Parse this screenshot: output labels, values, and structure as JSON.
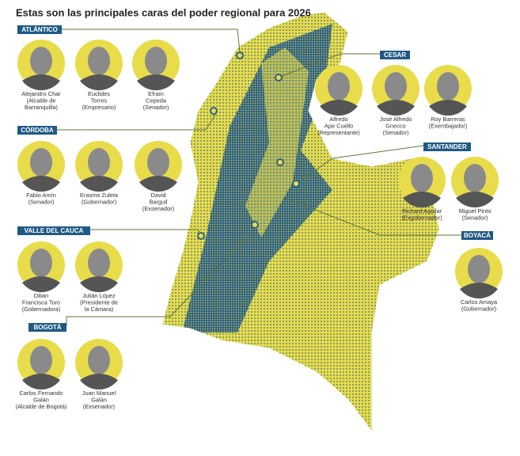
{
  "title": "Estas son las principales caras del poder regional para 2026",
  "regions": [
    {
      "name": "ATLÁNTICO",
      "people": [
        {
          "lines": [
            "Alejandro Char",
            "(Alcalde de",
            "Barranquilla)"
          ]
        },
        {
          "lines": [
            "Euclides",
            "Torres",
            "(Empresario)"
          ]
        },
        {
          "lines": [
            "Efraín",
            "Cepeda",
            "(Senador)"
          ]
        }
      ]
    },
    {
      "name": "CESAR",
      "people": [
        {
          "lines": [
            "Alfredo",
            "Ape Cuello",
            "(Representante)"
          ]
        },
        {
          "lines": [
            "José Alfredo",
            "Gnecco",
            "(Senador)"
          ]
        },
        {
          "lines": [
            "Roy Barreras",
            "(Exembajador)"
          ]
        }
      ]
    },
    {
      "name": "CÓRDOBA",
      "people": [
        {
          "lines": [
            "Fabio Amín",
            "(Senador)"
          ]
        },
        {
          "lines": [
            "Erasmo Zuleta",
            "(Gobernador)"
          ]
        },
        {
          "lines": [
            "David",
            "Barguil",
            "(Exsenador)"
          ]
        }
      ]
    },
    {
      "name": "SANTANDER",
      "people": [
        {
          "lines": [
            "Richard Aguilar",
            "(Exgobernador)"
          ]
        },
        {
          "lines": [
            "Miguel Pinto",
            "(Senador)"
          ]
        }
      ]
    },
    {
      "name": "VALLE DEL CAUCA",
      "people": [
        {
          "lines": [
            "Dilian",
            "Francisca Toro",
            "(Gobernadora)"
          ]
        },
        {
          "lines": [
            "Julián López",
            "(Presidente de",
            "la Cámara)"
          ]
        }
      ]
    },
    {
      "name": "BOYACÁ",
      "people": [
        {
          "lines": [
            "Carlos Amaya",
            "(Gobernador)"
          ]
        }
      ]
    },
    {
      "name": "BOGOTÁ",
      "people": [
        {
          "lines": [
            "Carlos Fernando",
            "Galán",
            "(Alcalde de Bogotá)"
          ]
        },
        {
          "lines": [
            "Juan Manuel",
            "Galán",
            "(Exsenador)"
          ]
        }
      ]
    }
  ]
}
